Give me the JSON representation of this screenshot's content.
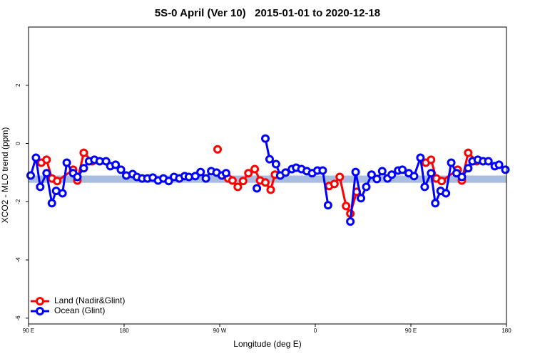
{
  "chart_data": {
    "type": "line",
    "title": "5S-0 April (Ver 10)   2015-01-01 to 2020-12-18",
    "x_label": "Longitude (deg E)",
    "y_label": "XCO2 - MLO trend (ppm)",
    "xlim": [
      90,
      540
    ],
    "ylim": [
      -6.2,
      4.0
    ],
    "xticks": [
      {
        "value": 90,
        "label": "90 E"
      },
      180,
      {
        "value": 270,
        "label": "90 W"
      },
      {
        "value": 360,
        "label": "0"
      },
      {
        "value": 450,
        "label": "90 E"
      },
      {
        "value": 540,
        "label": "180"
      }
    ],
    "yticks": [
      -6,
      -4,
      -2,
      0,
      2
    ],
    "reference_band": {
      "low": -1.35,
      "high": -1.1,
      "color": "#a8bddf"
    },
    "legend": "bottom-left",
    "series": [
      {
        "name": "Land (Nadir&Glint)",
        "color": "#ff0000",
        "x": [
          102,
          107,
          112,
          117,
          132,
          136,
          142,
          150,
          null,
          268,
          null,
          278,
          282,
          287,
          292,
          297,
          303,
          308,
          313,
          318,
          322,
          null,
          373,
          378,
          383,
          389,
          393,
          399,
          null,
          464,
          469,
          474,
          479,
          494,
          498,
          504,
          512
        ],
        "values": [
          -0.66,
          -0.56,
          -1.2,
          -1.29,
          -0.9,
          -1.27,
          -0.32,
          -0.61,
          null,
          -0.2,
          null,
          -1.2,
          -1.27,
          -1.49,
          -1.29,
          -1.02,
          -0.88,
          -1.27,
          -1.34,
          -1.59,
          -1.07,
          null,
          -1.46,
          -1.39,
          -1.15,
          -2.15,
          -2.41,
          -1.66,
          null,
          -0.66,
          -0.56,
          -1.2,
          -1.29,
          -0.9,
          -1.27,
          -0.32,
          -0.61
        ]
      },
      {
        "name": "Ocean (Glint)",
        "color": "#0000ff",
        "x": [
          92,
          97,
          101,
          107,
          112,
          116,
          122,
          126,
          132,
          136,
          142,
          147,
          152,
          157,
          163,
          167,
          172,
          177,
          182,
          188,
          192,
          197,
          202,
          207,
          212,
          217,
          222,
          227,
          232,
          237,
          241,
          247,
          252,
          257,
          262,
          267,
          272,
          276,
          null,
          305,
          null,
          313,
          317,
          323,
          327,
          332,
          338,
          342,
          347,
          352,
          357,
          362,
          367,
          372,
          null,
          393,
          398,
          403,
          408,
          413,
          418,
          423,
          428,
          432,
          438,
          442,
          448,
          453,
          459,
          463,
          469,
          473,
          478,
          483,
          488,
          493,
          498,
          504,
          508,
          513,
          518,
          523,
          529,
          533,
          539
        ],
        "values": [
          -1.1,
          -0.49,
          -1.49,
          -1.02,
          -2.05,
          -1.63,
          -1.71,
          -0.66,
          -1.02,
          -1.15,
          -0.85,
          -0.61,
          -0.56,
          -0.61,
          -0.61,
          -0.78,
          -0.73,
          -0.9,
          -1.1,
          -1.05,
          -1.15,
          -1.2,
          -1.2,
          -1.17,
          -1.27,
          -1.2,
          -1.29,
          -1.15,
          -1.2,
          -1.12,
          -1.15,
          -1.12,
          -0.98,
          -1.2,
          -0.95,
          -1.0,
          -1.1,
          -1.02,
          null,
          -1.54,
          null,
          0.17,
          -0.54,
          -0.71,
          -1.1,
          -1.0,
          -0.88,
          -0.83,
          -0.88,
          -0.95,
          -1.02,
          -0.93,
          -0.93,
          -2.12,
          null,
          -2.68,
          -0.98,
          -1.88,
          -1.49,
          -1.07,
          -1.22,
          -0.95,
          -1.2,
          -1.07,
          -0.93,
          -0.9,
          -1.02,
          -1.12,
          -0.49,
          -1.49,
          -1.02,
          -2.05,
          -1.63,
          -1.71,
          -0.66,
          -1.02,
          -1.15,
          -0.85,
          -0.61,
          -0.56,
          -0.61,
          -0.61,
          -0.78,
          -0.73,
          -0.9
        ]
      }
    ]
  }
}
